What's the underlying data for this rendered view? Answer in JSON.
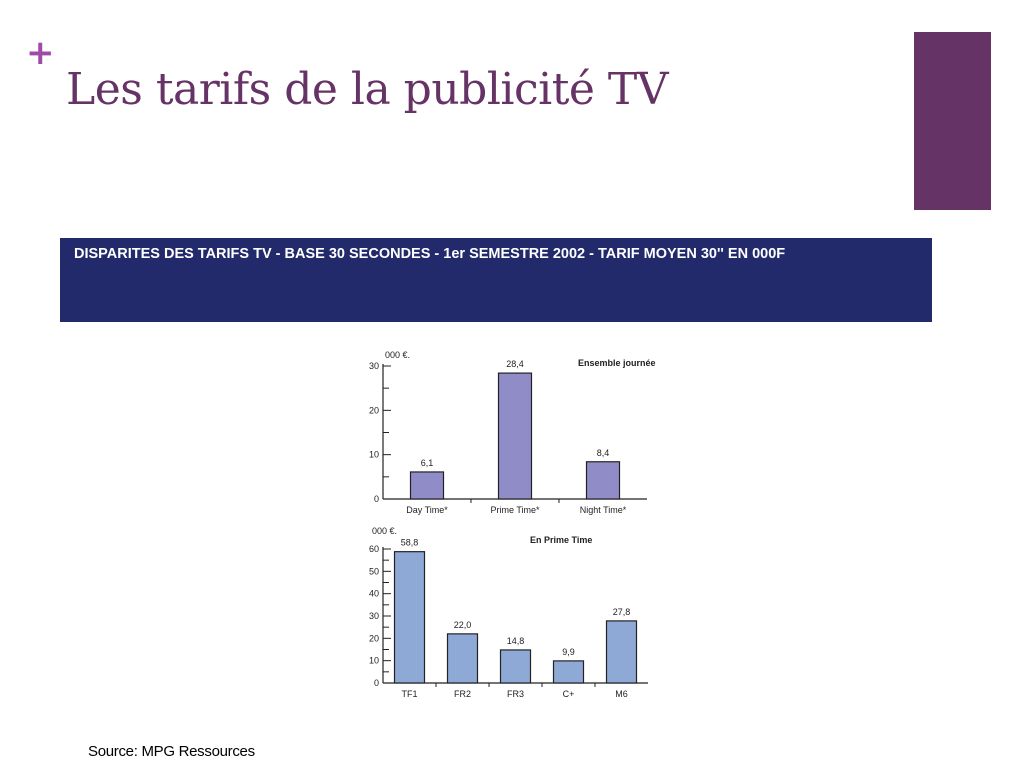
{
  "slide": {
    "bullet": "+",
    "title": "Les tarifs de la publicité TV",
    "banner": "DISPARITES DES TARIFS TV - BASE 30 SECONDES - 1er SEMESTRE 2002 - TARIF MOYEN 30'' EN 000F",
    "source": "Source: MPG Ressources"
  },
  "colors": {
    "title": "#663366",
    "accent_bar": "#663366",
    "bullet": "#a04aa8",
    "banner_bg": "#232a6b",
    "bar_chart1": "#8f8cc7",
    "bar_chart2": "#8fa9d6"
  },
  "chart_data": [
    {
      "type": "bar",
      "title": "Ensemble journée",
      "unit": "000 €.",
      "categories": [
        "Day Time*",
        "Prime Time*",
        "Night Time*"
      ],
      "values": [
        6.1,
        28.4,
        8.4
      ],
      "value_labels": [
        "6,1",
        "28,4",
        "8,4"
      ],
      "ylim": [
        0,
        30
      ],
      "yticks": [
        0,
        10,
        20,
        30
      ],
      "ytick_labels": [
        "0",
        "10",
        "20",
        "30"
      ],
      "minor_tick_step": 5,
      "grid": false
    },
    {
      "type": "bar",
      "title": "En Prime Time",
      "unit": "000 €.",
      "categories": [
        "TF1",
        "FR2",
        "FR3",
        "C+",
        "M6"
      ],
      "values": [
        58.8,
        22.0,
        14.8,
        9.9,
        27.8
      ],
      "value_labels": [
        "58,8",
        "22,0",
        "14,8",
        "9,9",
        "27,8"
      ],
      "ylim": [
        0,
        60
      ],
      "yticks": [
        0,
        10,
        20,
        30,
        40,
        50,
        60
      ],
      "ytick_labels": [
        "0",
        "10",
        "20",
        "30",
        "40",
        "50",
        "60"
      ],
      "minor_tick_step": 5,
      "grid": false
    }
  ]
}
